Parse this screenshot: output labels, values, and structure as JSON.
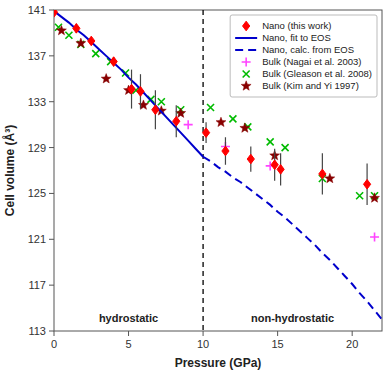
{
  "chart_data": {
    "type": "scatter",
    "xlabel": "Pressure (GPa)",
    "ylabel": "Cell volume (Å³)",
    "xlim": [
      0,
      22
    ],
    "ylim": [
      113,
      141
    ],
    "xticks": [
      0,
      5,
      10,
      15,
      20
    ],
    "yticks": [
      113,
      117,
      121,
      125,
      129,
      133,
      137,
      141
    ],
    "grid": false,
    "legend": "upper right",
    "vlines": [
      10
    ],
    "annotations": [
      "hydrostatic",
      "non-hydrostatic"
    ],
    "series": [
      {
        "name": "Nano (this work)",
        "type": "scatter",
        "marker": "diamond",
        "color": "#ff0000",
        "x": [
          0.0,
          1.5,
          2.5,
          4.0,
          5.2,
          5.8,
          6.8,
          8.2,
          10.2,
          11.5,
          13.2,
          14.8,
          15.2,
          18.0,
          21.0
        ],
        "values": [
          140.8,
          139.4,
          138.3,
          136.5,
          134.1,
          133.9,
          132.3,
          131.3,
          130.3,
          128.7,
          128.0,
          127.5,
          127.1,
          126.7,
          125.8
        ],
        "errors": [
          0.2,
          0.4,
          0.35,
          0.4,
          1.7,
          1.5,
          1.7,
          1.4,
          0.9,
          1.2,
          1.1,
          1.4,
          1.4,
          1.8,
          1.8
        ]
      },
      {
        "name": "Nano, fit to EOS",
        "type": "line",
        "line_style": "solid",
        "color": "#0000cc",
        "x": [
          0.0,
          0.5,
          1.0,
          1.5,
          2.0,
          2.5,
          3.0,
          3.5,
          4.0,
          4.5,
          5.0,
          5.5,
          6.0,
          6.5,
          7.0,
          7.5,
          8.0,
          8.5,
          9.0,
          9.5,
          10.0
        ],
        "values": [
          140.9,
          140.4,
          139.9,
          139.3,
          138.8,
          138.2,
          137.6,
          137.0,
          136.4,
          135.8,
          135.1,
          134.5,
          133.8,
          133.1,
          132.4,
          131.7,
          131.0,
          130.3,
          129.6,
          128.9,
          128.2
        ]
      },
      {
        "name": "Nano, calc. from EOS",
        "type": "line",
        "line_style": "dashed",
        "color": "#0000cc",
        "x": [
          10.0,
          10.5,
          11.0,
          11.5,
          12.0,
          12.5,
          13.0,
          13.5,
          14.0,
          14.5,
          15.0,
          15.5,
          16.0,
          16.5,
          17.0,
          17.5,
          18.0,
          18.5,
          19.0,
          19.5,
          20.0,
          20.5,
          21.0,
          21.5,
          22.0
        ],
        "values": [
          128.2,
          127.8,
          127.3,
          126.9,
          126.4,
          126.0,
          125.5,
          125.0,
          124.5,
          124.0,
          123.4,
          122.9,
          122.3,
          121.7,
          121.1,
          120.5,
          119.8,
          119.2,
          118.5,
          117.8,
          117.1,
          116.3,
          115.6,
          114.8,
          114.0
        ]
      },
      {
        "name": "Bulk (Nagai et al. 2003)",
        "type": "scatter",
        "marker": "plus",
        "color": "#ff44ff",
        "x": [
          9.0,
          11.5,
          14.5,
          21.5
        ],
        "values": [
          131.0,
          129.1,
          127.4,
          121.2
        ]
      },
      {
        "name": "Bulk (Gleason et al. 2008)",
        "type": "scatter",
        "marker": "x",
        "color": "#00bb00",
        "x": [
          0.3,
          1.0,
          1.8,
          2.8,
          3.8,
          4.8,
          5.5,
          6.5,
          7.2,
          8.5,
          10.5,
          12.0,
          13.0,
          14.5,
          15.5,
          18.0,
          20.5,
          21.5
        ],
        "values": [
          139.5,
          138.8,
          138.0,
          137.2,
          136.5,
          135.5,
          134.0,
          133.2,
          133.0,
          132.3,
          132.5,
          131.5,
          130.8,
          129.5,
          129.0,
          126.3,
          124.8,
          124.8
        ]
      },
      {
        "name": "Bulk (Kim and Yi 1997)",
        "type": "scatter",
        "marker": "star",
        "color": "#880000",
        "x": [
          0.5,
          1.8,
          3.5,
          5.0,
          6.0,
          7.2,
          8.5,
          11.2,
          12.8,
          14.8,
          18.5,
          21.5
        ],
        "values": [
          139.2,
          138.1,
          135.0,
          134.0,
          132.7,
          132.2,
          132.0,
          131.2,
          130.7,
          128.3,
          126.3,
          124.6
        ]
      }
    ]
  }
}
